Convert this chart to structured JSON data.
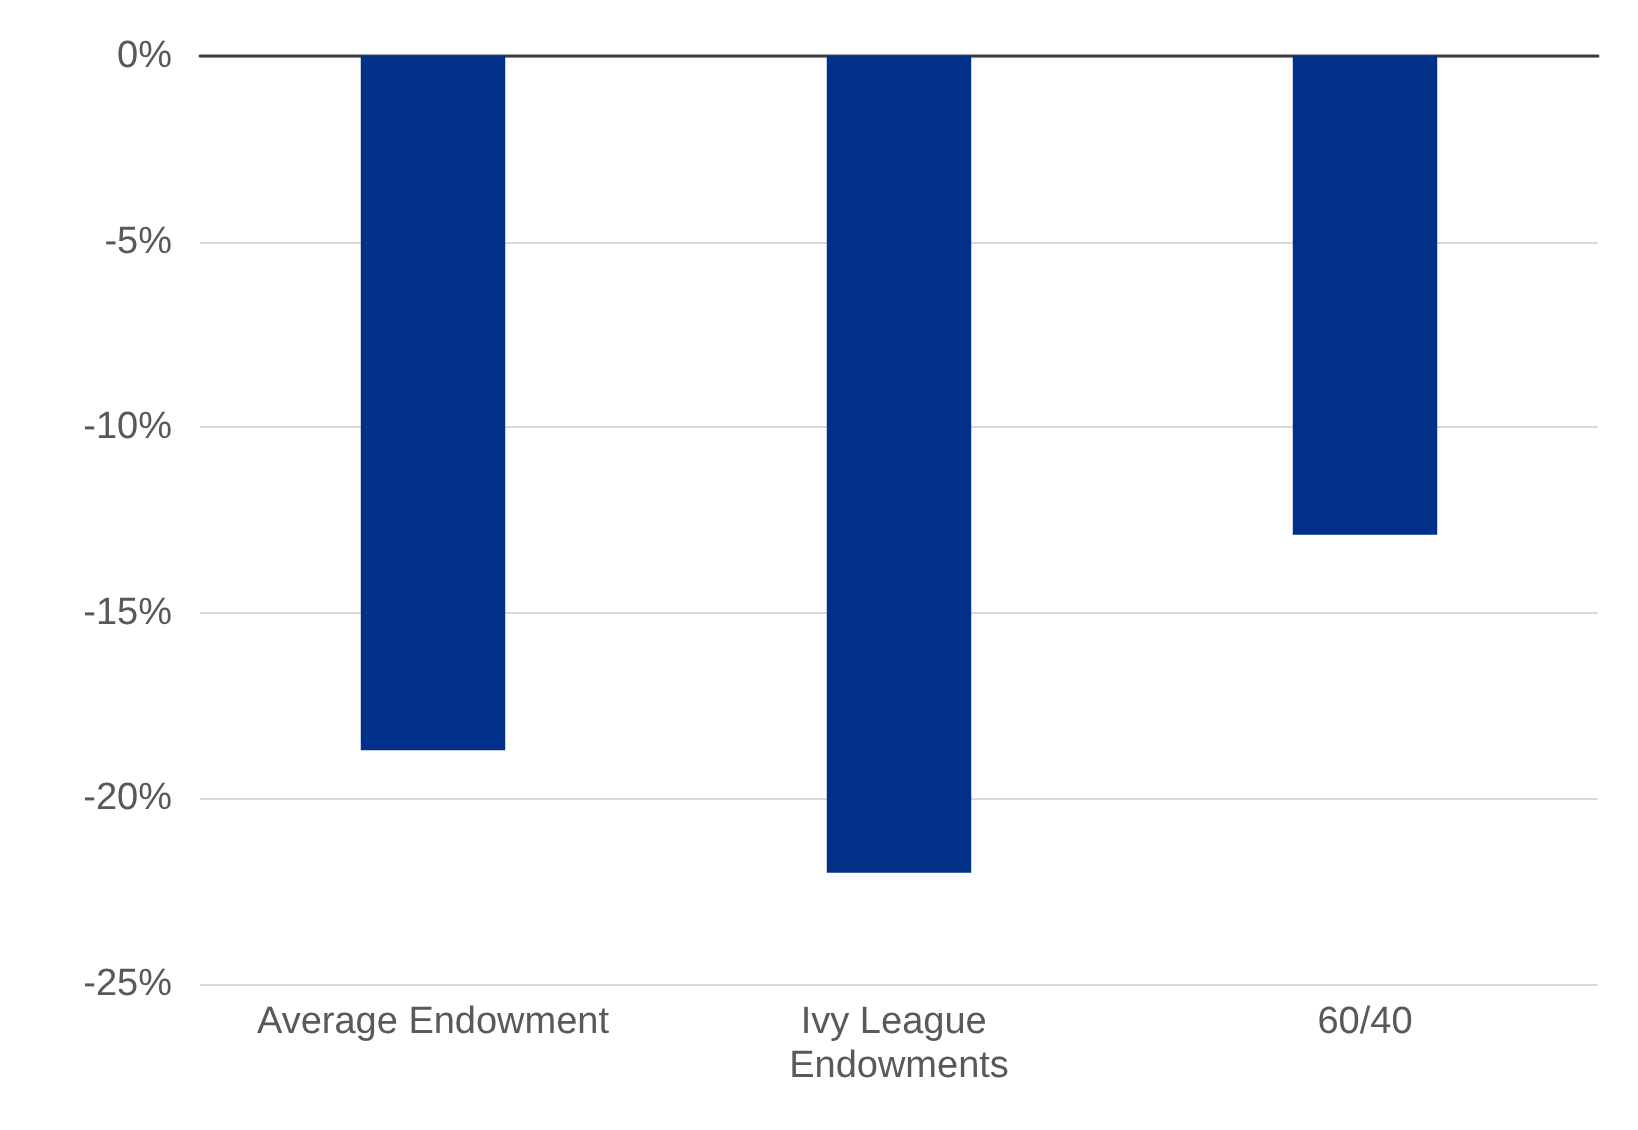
{
  "chart_data": {
    "type": "bar",
    "categories": [
      "Average Endowment",
      "Ivy League Endowments",
      "60/40"
    ],
    "values": [
      -18.7,
      -22.0,
      -12.9
    ],
    "color": "#003087",
    "ylim": [
      -25,
      0
    ],
    "yticks": [
      {
        "value": -25,
        "label": "-25%"
      },
      {
        "value": -20,
        "label": "-20%"
      },
      {
        "value": -15,
        "label": "-15%"
      },
      {
        "value": -10,
        "label": "-10%"
      },
      {
        "value": -5,
        "label": "-5%"
      },
      {
        "value": 0,
        "label": "0%"
      }
    ],
    "grid": "y"
  }
}
